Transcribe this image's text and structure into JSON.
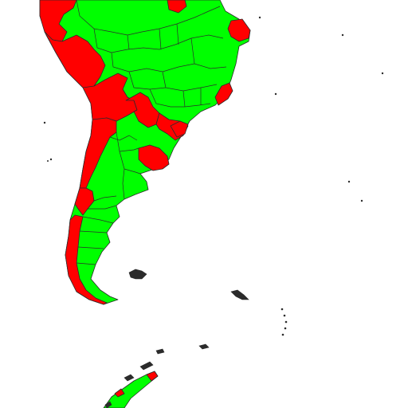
{
  "map": {
    "colors": {
      "highlighted": "#ff0000",
      "default": "#00ff00",
      "border": "#2b2b2b",
      "background": "#ffffff"
    },
    "legend": "none"
  }
}
